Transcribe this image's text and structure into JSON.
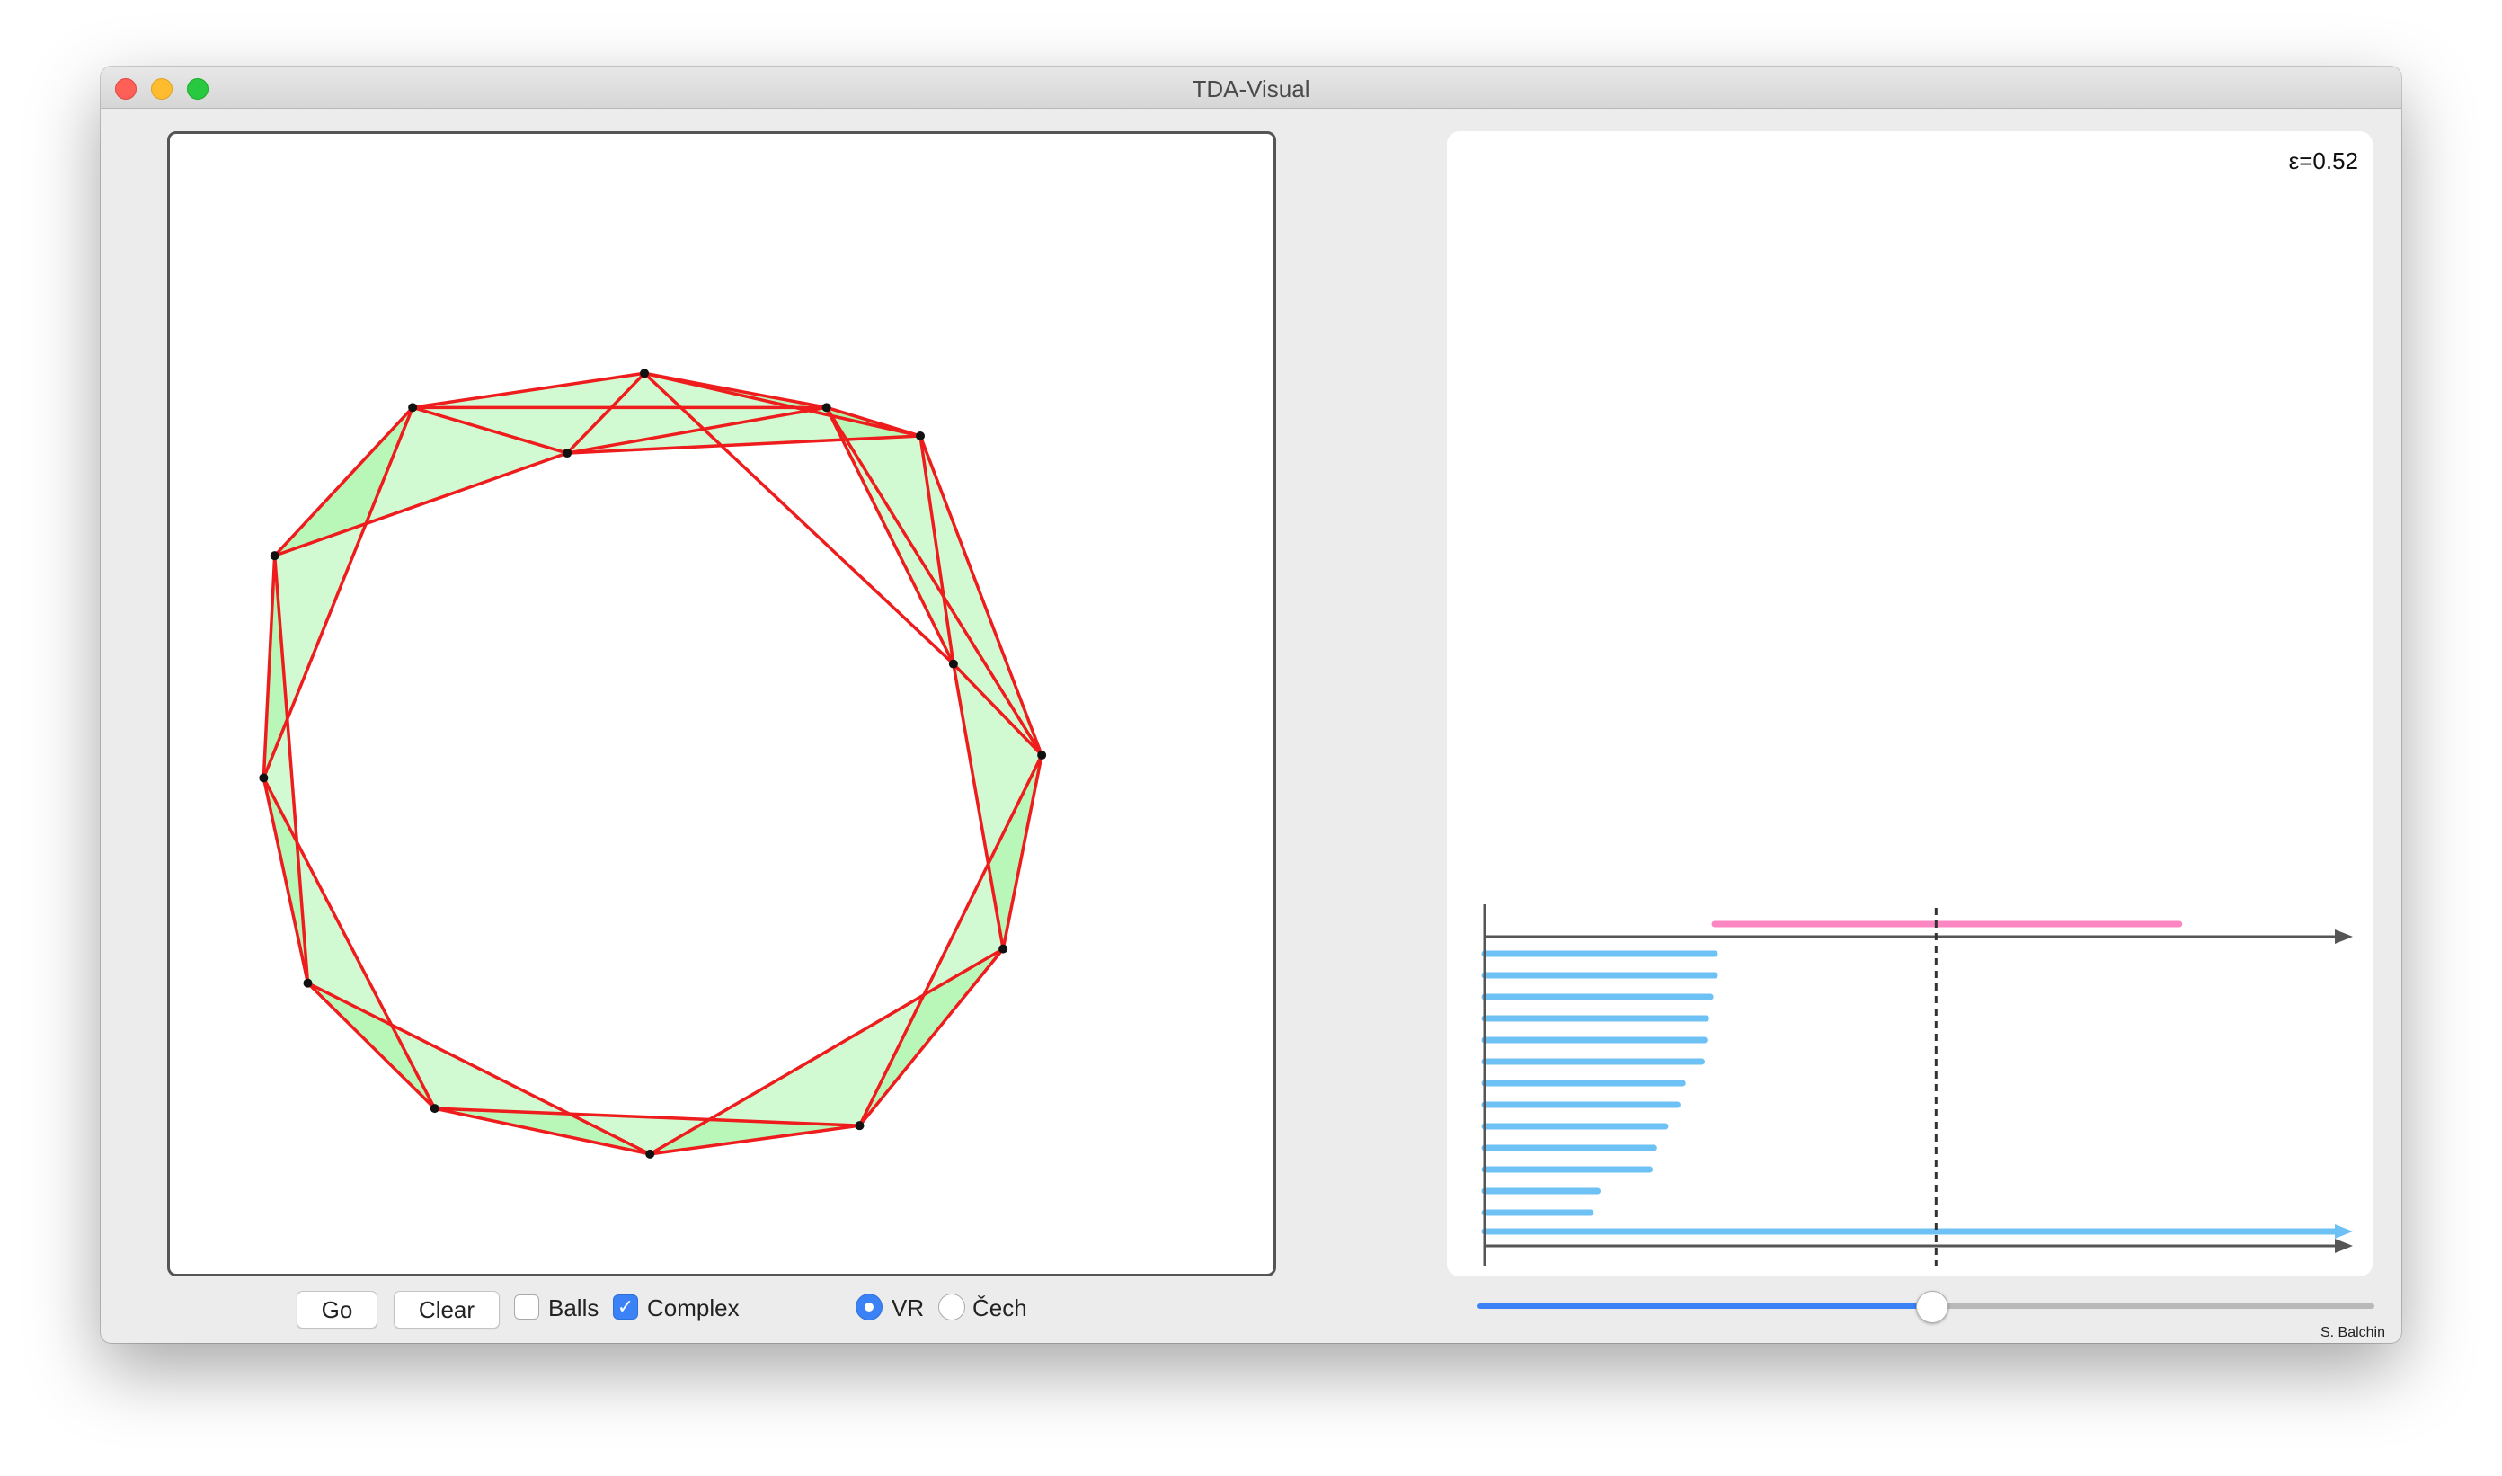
{
  "window": {
    "title": "TDA-Visual"
  },
  "readout": {
    "epsilon": "ε=0.52"
  },
  "controls": {
    "go_label": "Go",
    "clear_label": "Clear",
    "balls_label": "Balls",
    "balls_checked": false,
    "complex_label": "Complex",
    "complex_checked": true,
    "vr_label": "VR",
    "vr_selected": true,
    "cech_label": "Čech",
    "cech_selected": false
  },
  "slider": {
    "value": 0.52
  },
  "credit": "S. Balchin",
  "colors": {
    "edge": "#ee1c1c",
    "fill": "#9cf59c",
    "h0_bar": "#6ec1f5",
    "h1_bar": "#fb86c2",
    "accent": "#3b82f6"
  },
  "complex": {
    "points": [
      [
        0.43,
        0.21
      ],
      [
        0.595,
        0.24
      ],
      [
        0.68,
        0.265
      ],
      [
        0.22,
        0.24
      ],
      [
        0.36,
        0.28
      ],
      [
        0.095,
        0.37
      ],
      [
        0.71,
        0.465
      ],
      [
        0.79,
        0.545
      ],
      [
        0.085,
        0.565
      ],
      [
        0.125,
        0.745
      ],
      [
        0.755,
        0.715
      ],
      [
        0.24,
        0.855
      ],
      [
        0.435,
        0.895
      ],
      [
        0.625,
        0.87
      ]
    ],
    "triangles": [
      [
        3,
        0,
        4
      ],
      [
        0,
        1,
        4
      ],
      [
        1,
        2,
        4
      ],
      [
        3,
        5,
        4
      ],
      [
        0,
        1,
        2
      ],
      [
        2,
        6,
        7
      ],
      [
        1,
        2,
        6
      ],
      [
        5,
        8,
        3
      ],
      [
        8,
        9,
        5
      ],
      [
        7,
        10,
        6
      ],
      [
        9,
        11,
        8
      ],
      [
        11,
        12,
        9
      ],
      [
        12,
        13,
        11
      ],
      [
        13,
        10,
        12
      ],
      [
        10,
        13,
        7
      ]
    ],
    "edges": [
      [
        3,
        0
      ],
      [
        3,
        4
      ],
      [
        3,
        1
      ],
      [
        0,
        4
      ],
      [
        0,
        1
      ],
      [
        0,
        2
      ],
      [
        1,
        2
      ],
      [
        1,
        4
      ],
      [
        4,
        2
      ],
      [
        3,
        5
      ],
      [
        5,
        4
      ],
      [
        0,
        6
      ],
      [
        1,
        6
      ],
      [
        1,
        7
      ],
      [
        2,
        6
      ],
      [
        2,
        7
      ],
      [
        6,
        7
      ],
      [
        5,
        8
      ],
      [
        5,
        9
      ],
      [
        3,
        8
      ],
      [
        8,
        9
      ],
      [
        8,
        11
      ],
      [
        9,
        11
      ],
      [
        9,
        12
      ],
      [
        11,
        12
      ],
      [
        11,
        13
      ],
      [
        12,
        13
      ],
      [
        12,
        10
      ],
      [
        13,
        10
      ],
      [
        10,
        7
      ],
      [
        13,
        7
      ],
      [
        6,
        10
      ]
    ]
  },
  "barcode": {
    "epsilon": 0.52,
    "max": 1.0,
    "h1": [
      {
        "birth": 0.265,
        "death": 0.8
      }
    ],
    "h0": [
      {
        "birth": 0.0,
        "death": 0.265
      },
      {
        "birth": 0.0,
        "death": 0.265
      },
      {
        "birth": 0.0,
        "death": 0.26
      },
      {
        "birth": 0.0,
        "death": 0.255
      },
      {
        "birth": 0.0,
        "death": 0.253
      },
      {
        "birth": 0.0,
        "death": 0.25
      },
      {
        "birth": 0.0,
        "death": 0.228
      },
      {
        "birth": 0.0,
        "death": 0.222
      },
      {
        "birth": 0.0,
        "death": 0.208
      },
      {
        "birth": 0.0,
        "death": 0.195
      },
      {
        "birth": 0.0,
        "death": 0.19
      },
      {
        "birth": 0.0,
        "death": 0.13
      },
      {
        "birth": 0.0,
        "death": 0.122
      },
      {
        "birth": 0.0,
        "death": null
      }
    ]
  }
}
